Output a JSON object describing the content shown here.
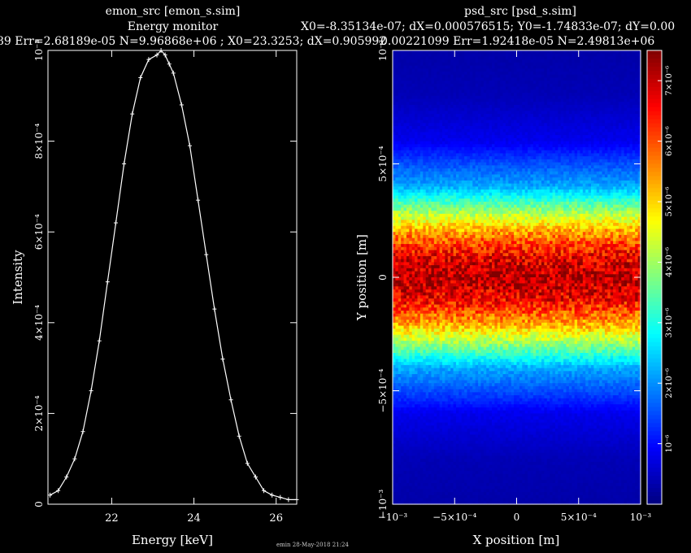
{
  "footer": "emin 28-May-2018 21:24",
  "colors": {
    "background": "#000000",
    "foreground": "#ffffff"
  },
  "chart_data": [
    {
      "type": "line",
      "title": "emon_src [emon_s.sim]",
      "subtitle": "Energy monitor",
      "stats": "89 Err=2.68189e-05 N=9.96868e+06 ; X0=23.3253; dX=0.905992",
      "xlabel": "Energy [keV]",
      "ylabel": "Intensity",
      "xlim": [
        20.45,
        26.5
      ],
      "ylim": [
        0,
        0.001
      ],
      "x_ticks": [
        {
          "v": 22,
          "label": "22"
        },
        {
          "v": 24,
          "label": "24"
        },
        {
          "v": 26,
          "label": "26"
        }
      ],
      "y_ticks": [
        {
          "v": 0,
          "label": "0"
        },
        {
          "v": 0.0002,
          "label": "2×10⁻⁴"
        },
        {
          "v": 0.0004,
          "label": "4×10⁻⁴"
        },
        {
          "v": 0.0006,
          "label": "6×10⁻⁴"
        },
        {
          "v": 0.0008,
          "label": "8×10⁻⁴"
        },
        {
          "v": 0.001,
          "label": "10⁻³"
        }
      ],
      "series": [
        {
          "x": [
            20.5,
            20.7,
            20.9,
            21.1,
            21.3,
            21.5,
            21.7,
            21.9,
            22.1,
            22.3,
            22.5,
            22.7,
            22.9,
            23.1,
            23.2,
            23.3,
            23.4,
            23.5,
            23.7,
            23.9,
            24.1,
            24.3,
            24.5,
            24.7,
            24.9,
            25.1,
            25.3,
            25.5,
            25.7,
            25.9,
            26.1,
            26.3,
            26.5
          ],
          "y": [
            2e-05,
            3e-05,
            6e-05,
            0.0001,
            0.00016,
            0.00025,
            0.00036,
            0.00049,
            0.00062,
            0.00075,
            0.00086,
            0.00094,
            0.00098,
            0.00099,
            0.001,
            0.00099,
            0.00097,
            0.00095,
            0.00088,
            0.00079,
            0.00067,
            0.00055,
            0.00043,
            0.00032,
            0.00023,
            0.00015,
            9e-05,
            6e-05,
            3e-05,
            2e-05,
            1.5e-05,
            1e-05,
            1e-05
          ]
        }
      ]
    },
    {
      "type": "heatmap",
      "title": "psd_src [psd_s.sim]",
      "stats_line1": "X0=-8.35134e-07; dX=0.000576515; Y0=-1.74833e-07; dY=0.00",
      "stats_line2": "0.00221099 Err=1.92418e-05 N=2.49813e+06",
      "xlabel": "X position [m]",
      "ylabel": "Y position [m]",
      "xlim": [
        -0.001,
        0.001
      ],
      "ylim": [
        -0.001,
        0.001
      ],
      "x_ticks": [
        {
          "v": -0.001,
          "label": "−10⁻³"
        },
        {
          "v": -0.0005,
          "label": "−5×10⁻⁴"
        },
        {
          "v": 0,
          "label": "0"
        },
        {
          "v": 0.0005,
          "label": "5×10⁻⁴"
        },
        {
          "v": 0.001,
          "label": "10⁻³"
        }
      ],
      "y_ticks": [
        {
          "v": -0.001,
          "label": "−10⁻³"
        },
        {
          "v": -0.0005,
          "label": "−5×10⁻⁴"
        },
        {
          "v": 0,
          "label": "0"
        },
        {
          "v": 0.0005,
          "label": "5×10⁻⁴"
        },
        {
          "v": 0.001,
          "label": "10⁻³"
        }
      ],
      "intensity_profile_y": {
        "y": [
          -0.001,
          -0.0008,
          -0.0006,
          -0.0004,
          -0.0003,
          -0.0002,
          -0.0001,
          0,
          0.0001,
          0.0002,
          0.0003,
          0.0004,
          0.0006,
          0.0008,
          0.001
        ],
        "value": [
          3e-07,
          4e-07,
          8e-07,
          2.2e-06,
          3.8e-06,
          5.4e-06,
          6.6e-06,
          7.2e-06,
          6.6e-06,
          5.4e-06,
          3.8e-06,
          2.2e-06,
          8e-07,
          4e-07,
          3e-07
        ]
      },
      "colorbar": {
        "range": [
          0,
          7.5e-06
        ],
        "ticks": [
          {
            "v": 1e-06,
            "label": "10⁻⁶"
          },
          {
            "v": 2e-06,
            "label": "2×10⁻⁶"
          },
          {
            "v": 3e-06,
            "label": "3×10⁻⁶"
          },
          {
            "v": 4e-06,
            "label": "4×10⁻⁶"
          },
          {
            "v": 5e-06,
            "label": "5×10⁻⁶"
          },
          {
            "v": 6e-06,
            "label": "6×10⁻⁶"
          },
          {
            "v": 7e-06,
            "label": "7×10⁻⁶"
          }
        ]
      }
    }
  ]
}
